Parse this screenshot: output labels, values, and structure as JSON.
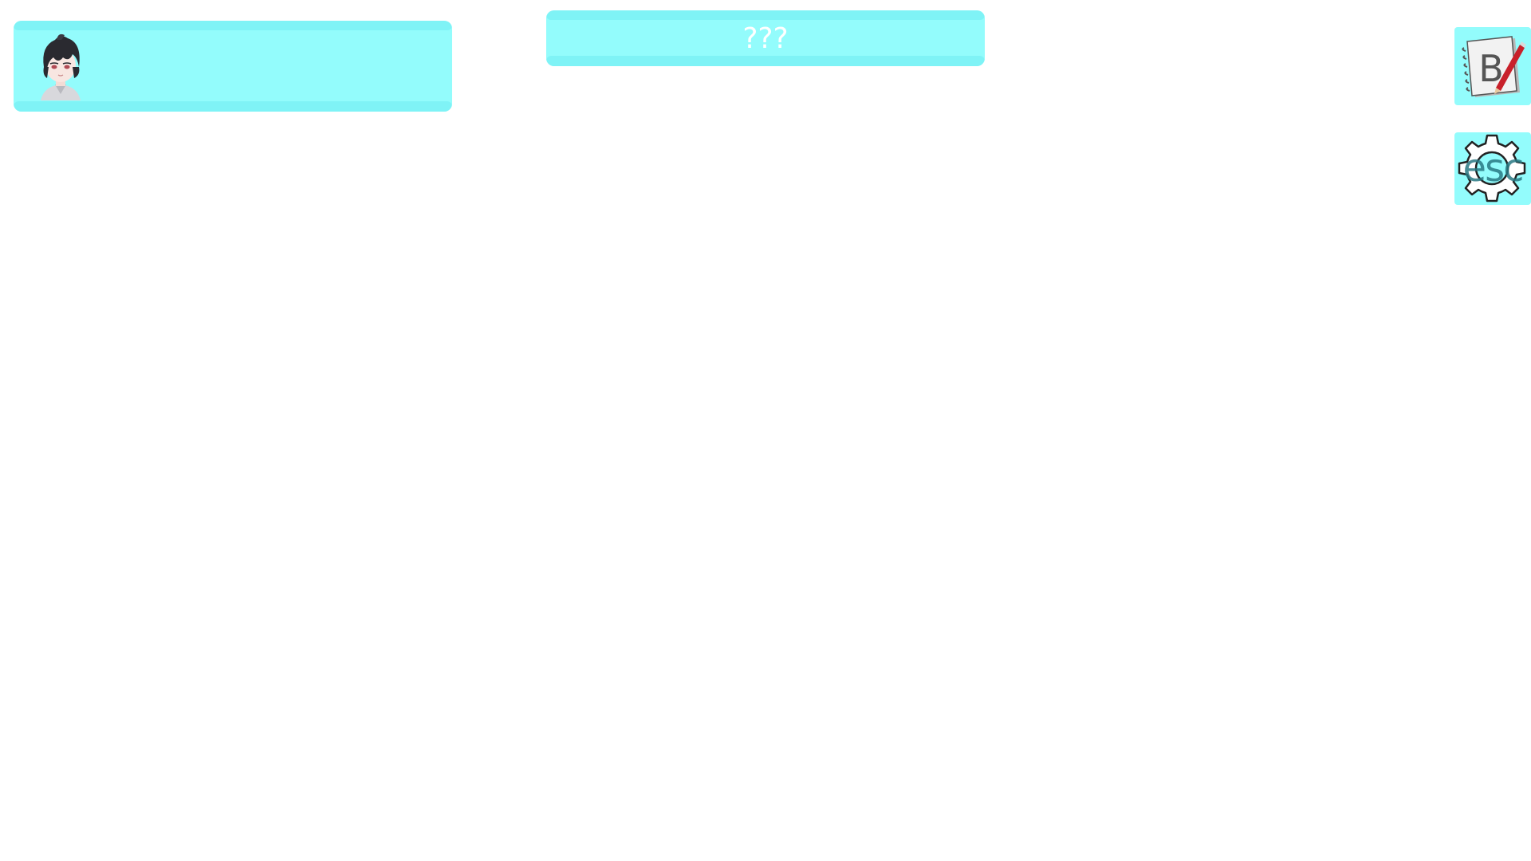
{
  "hud": {
    "location_name": "???",
    "portrait": {
      "icon": "player-portrait-icon"
    }
  },
  "buttons": {
    "notebook": {
      "label": "B",
      "icon": "notebook-icon"
    },
    "settings": {
      "label": "esc",
      "icon": "gear-icon"
    }
  },
  "colors": {
    "banner_fill": "#93fcfc",
    "banner_edge": "#7ff3f6",
    "background": "#ffffff",
    "text": "#ffffff"
  }
}
